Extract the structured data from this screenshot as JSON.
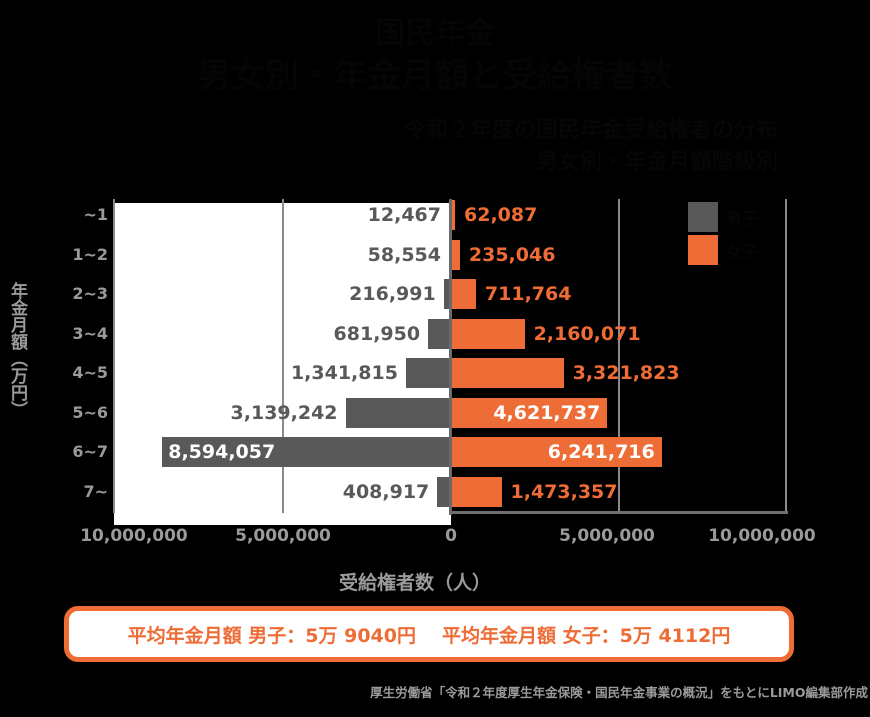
{
  "header": {
    "title_line1": "国民年金",
    "title_line2": "男女別・年金月額と受給権者数",
    "subtitle_line1": "令和２年度の国民年金受給権者の分布",
    "subtitle_line2": "男女別・年金月額階級別"
  },
  "legend": [
    {
      "label": "男子",
      "color": "#595959"
    },
    {
      "label": "女子",
      "color": "#ee6c35"
    }
  ],
  "axes": {
    "y_label": "年金月額（万円）",
    "x_label": "受給権者数（人）",
    "x_ticks_left": [
      "10,000,000",
      "5,000,000"
    ],
    "x_tick_zero": "0",
    "x_ticks_right": [
      "5,000,000",
      "10,000,000"
    ]
  },
  "rows": [
    {
      "category": "~1",
      "male": "12,467",
      "female": "62,087"
    },
    {
      "category": "1~2",
      "male": "58,554",
      "female": "235,046"
    },
    {
      "category": "2~3",
      "male": "216,991",
      "female": "711,764"
    },
    {
      "category": "3~4",
      "male": "681,950",
      "female": "2,160,071"
    },
    {
      "category": "4~5",
      "male": "1,341,815",
      "female": "3,321,823"
    },
    {
      "category": "5~6",
      "male": "3,139,242",
      "female": "4,621,737"
    },
    {
      "category": "6~7",
      "male": "8,594,057",
      "female": "6,241,716"
    },
    {
      "category": "7~",
      "male": "408,917",
      "female": "1,473,357"
    }
  ],
  "summary": {
    "male_avg": "平均年金月額 男子：5万 9040円",
    "female_avg": "平均年金月額 女子：5万 4112円"
  },
  "source": "厚生労働省「令和２年度厚生年金保険・国民年金事業の概況」をもとにLIMO編集部作成",
  "chart_data": {
    "type": "bar",
    "orientation": "horizontal-butterfly",
    "title": "国民年金 男女別・年金月額と受給権者数",
    "categories": [
      "~1",
      "1~2",
      "2~3",
      "3~4",
      "4~5",
      "5~6",
      "6~7",
      "7~"
    ],
    "series": [
      {
        "name": "男子",
        "color": "#595959",
        "direction": "left",
        "values": [
          12467,
          58554,
          216991,
          681950,
          1341815,
          3139242,
          8594057,
          408917
        ]
      },
      {
        "name": "女子",
        "color": "#ee6c35",
        "direction": "right",
        "values": [
          62087,
          235046,
          711764,
          2160071,
          3321823,
          4621737,
          6241716,
          1473357
        ]
      }
    ],
    "xlabel": "受給権者数（人）",
    "ylabel": "年金月額（万円）",
    "xlim": [
      -10000000,
      10000000
    ],
    "x_ticks": [
      "10,000,000",
      "5,000,000",
      "0",
      "5,000,000",
      "10,000,000"
    ],
    "grid": true,
    "legend_position": "top-right",
    "annotations": [
      "平均年金月額 男子：5万 9040円",
      "平均年金月額 女子：5万 4112円"
    ]
  }
}
